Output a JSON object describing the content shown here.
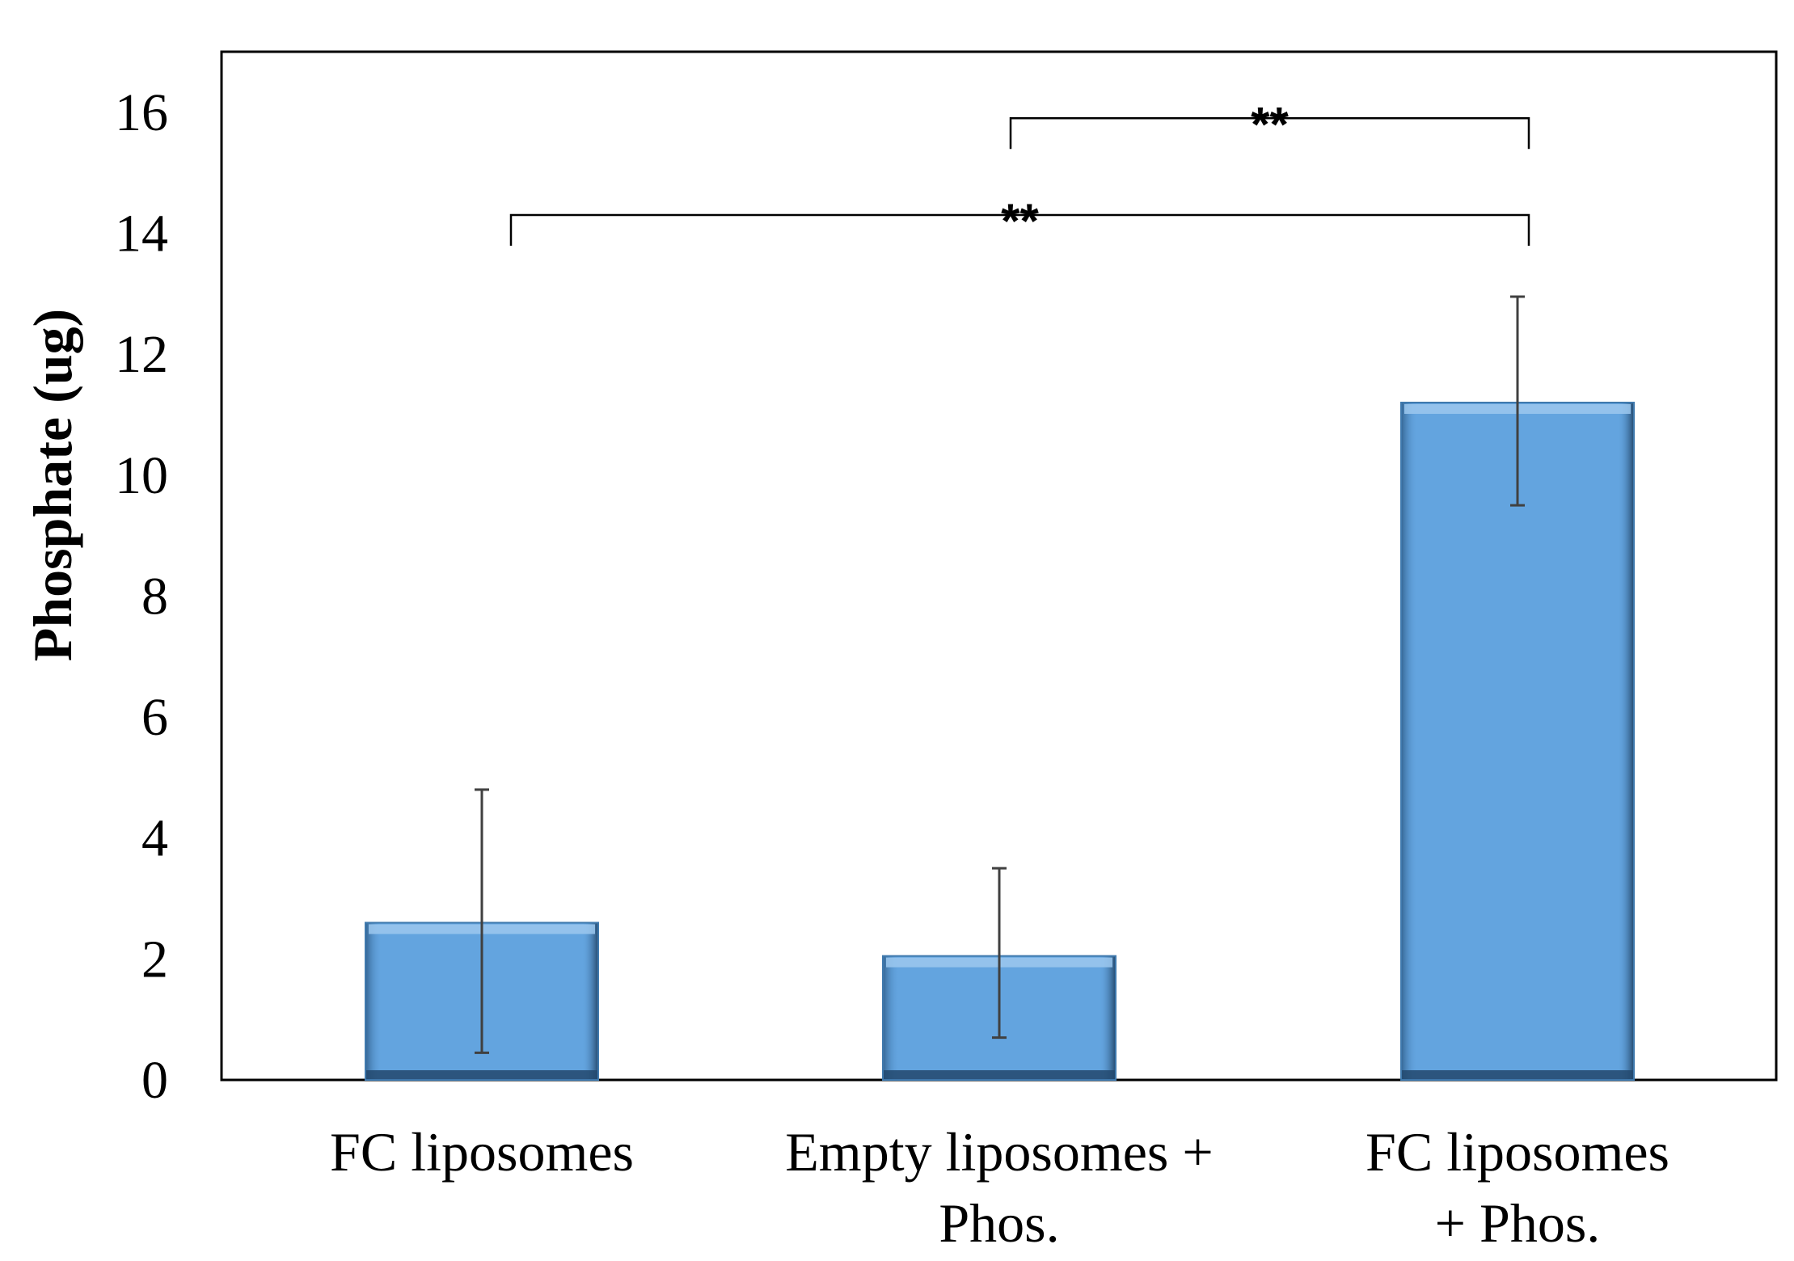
{
  "chart_data": {
    "type": "bar",
    "title": "",
    "xlabel": "",
    "ylabel": "Phosphate (ug)",
    "ylim": [
      0,
      17
    ],
    "yticks": [
      0,
      2,
      4,
      6,
      8,
      10,
      12,
      14,
      16
    ],
    "grid": false,
    "categories": [
      [
        "FC liposomes"
      ],
      [
        "Empty liposomes +",
        "Phos."
      ],
      [
        "FC liposomes",
        "+ Phos."
      ]
    ],
    "values": [
      2.6,
      2.05,
      11.2
    ],
    "error_low": [
      0.45,
      0.7,
      9.5
    ],
    "error_high": [
      4.8,
      3.5,
      12.95
    ],
    "bar_color": "#63a4df",
    "significance": [
      {
        "from": 0,
        "to": 2,
        "level": 14.3,
        "label": "**"
      },
      {
        "from": 1,
        "to": 2,
        "level": 15.9,
        "label": "**"
      }
    ]
  }
}
